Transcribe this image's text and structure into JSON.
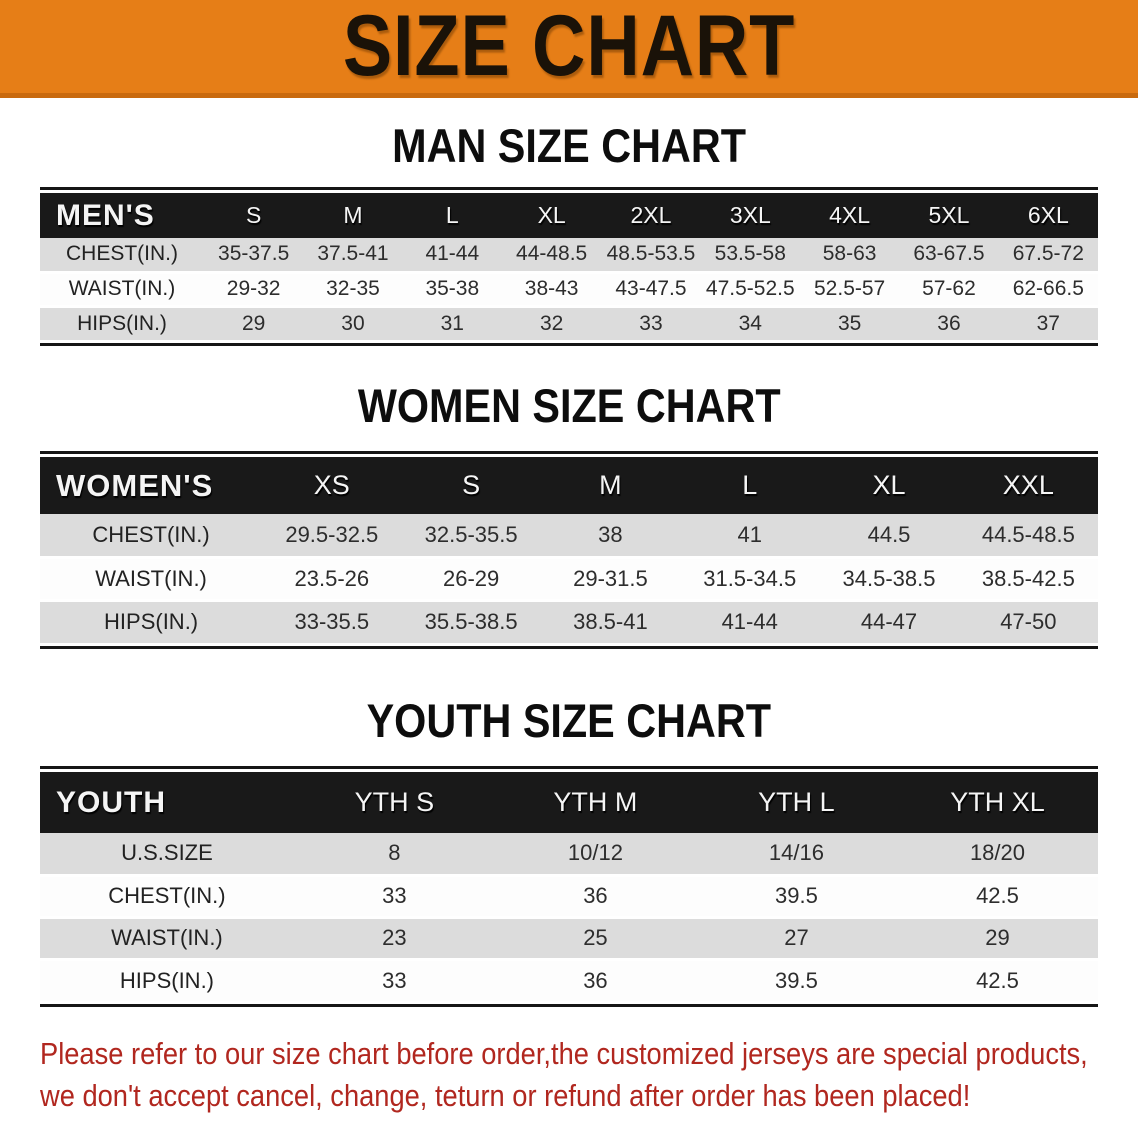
{
  "banner": {
    "title": "SIZE CHART",
    "bg_color": "#E67E17",
    "text_color": "#1a1208"
  },
  "sections": [
    {
      "heading": "MAN SIZE CHART",
      "table": {
        "header": [
          "MEN'S",
          "S",
          "M",
          "L",
          "XL",
          "2XL",
          "3XL",
          "4XL",
          "5XL",
          "6XL"
        ],
        "rows": [
          {
            "label": "CHEST(IN.)",
            "values": [
              "35-37.5",
              "37.5-41",
              "41-44",
              "44-48.5",
              "48.5-53.5",
              "53.5-58",
              "58-63",
              "63-67.5",
              "67.5-72"
            ]
          },
          {
            "label": "WAIST(IN.)",
            "values": [
              "29-32",
              "32-35",
              "35-38",
              "38-43",
              "43-47.5",
              "47.5-52.5",
              "52.5-57",
              "57-62",
              "62-66.5"
            ]
          },
          {
            "label": "HIPS(IN.)",
            "values": [
              "29",
              "30",
              "31",
              "32",
              "33",
              "34",
              "35",
              "36",
              "37"
            ]
          }
        ]
      }
    },
    {
      "heading": "WOMEN SIZE CHART",
      "table": {
        "header": [
          "WOMEN'S",
          "XS",
          "S",
          "M",
          "L",
          "XL",
          "XXL"
        ],
        "rows": [
          {
            "label": "CHEST(IN.)",
            "values": [
              "29.5-32.5",
              "32.5-35.5",
              "38",
              "41",
              "44.5",
              "44.5-48.5"
            ]
          },
          {
            "label": "WAIST(IN.)",
            "values": [
              "23.5-26",
              "26-29",
              "29-31.5",
              "31.5-34.5",
              "34.5-38.5",
              "38.5-42.5"
            ]
          },
          {
            "label": "HIPS(IN.)",
            "values": [
              "33-35.5",
              "35.5-38.5",
              "38.5-41",
              "41-44",
              "44-47",
              "47-50"
            ]
          }
        ]
      }
    },
    {
      "heading": "YOUTH SIZE CHART",
      "table": {
        "header": [
          "YOUTH",
          "YTH S",
          "YTH M",
          "YTH L",
          "YTH XL"
        ],
        "rows": [
          {
            "label": "U.S.SIZE",
            "values": [
              "8",
              "10/12",
              "14/16",
              "18/20"
            ]
          },
          {
            "label": "CHEST(IN.)",
            "values": [
              "33",
              "36",
              "39.5",
              "42.5"
            ]
          },
          {
            "label": "WAIST(IN.)",
            "values": [
              "23",
              "25",
              "27",
              "29"
            ]
          },
          {
            "label": "HIPS(IN.)",
            "values": [
              "33",
              "36",
              "39.5",
              "42.5"
            ]
          }
        ]
      }
    }
  ],
  "disclaimer": {
    "color": "#B1271F",
    "lines": [
      "Please refer to our size chart before order,the customized jerseys are special products,",
      "we don't accept cancel, change, teturn or refund after order has been placed!"
    ]
  },
  "colors": {
    "banner_orange": "#E67E17",
    "header_band_black": "#191919",
    "stripe_gray": "#DCDCDC",
    "disclaimer_red": "#B1271F"
  }
}
